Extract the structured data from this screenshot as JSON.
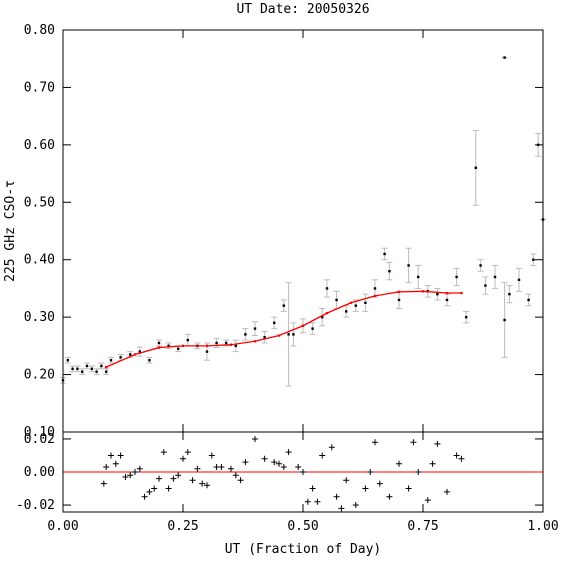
{
  "chart_data": [
    {
      "type": "scatter",
      "title": "UT Date: 20050326",
      "ylabel": "225 GHz CSO-τ",
      "xlim": [
        0,
        1
      ],
      "ylim": [
        0.1,
        0.8
      ],
      "yticks": [
        {
          "value": 0.1,
          "label": "0.10"
        },
        {
          "value": 0.2,
          "label": "0.20"
        },
        {
          "value": 0.3,
          "label": "0.30"
        },
        {
          "value": 0.4,
          "label": "0.40"
        },
        {
          "value": 0.5,
          "label": "0.50"
        },
        {
          "value": 0.6,
          "label": "0.60"
        },
        {
          "value": 0.7,
          "label": "0.70"
        },
        {
          "value": 0.8,
          "label": "0.80"
        }
      ],
      "points": {
        "color": "#000000",
        "error_color": "#bbbbbb",
        "x": [
          0.0,
          0.01,
          0.02,
          0.03,
          0.04,
          0.05,
          0.06,
          0.07,
          0.08,
          0.09,
          0.1,
          0.12,
          0.14,
          0.16,
          0.18,
          0.2,
          0.22,
          0.24,
          0.26,
          0.28,
          0.3,
          0.32,
          0.34,
          0.36,
          0.38,
          0.4,
          0.42,
          0.44,
          0.46,
          0.47,
          0.48,
          0.5,
          0.52,
          0.54,
          0.55,
          0.57,
          0.59,
          0.61,
          0.63,
          0.65,
          0.67,
          0.68,
          0.7,
          0.72,
          0.74,
          0.76,
          0.78,
          0.8,
          0.82,
          0.84,
          0.86,
          0.87,
          0.88,
          0.9,
          0.92,
          0.92,
          0.93,
          0.95,
          0.97,
          0.98,
          0.99,
          1.0
        ],
        "y": [
          0.19,
          0.225,
          0.21,
          0.21,
          0.205,
          0.215,
          0.21,
          0.205,
          0.215,
          0.205,
          0.225,
          0.23,
          0.235,
          0.24,
          0.225,
          0.255,
          0.25,
          0.245,
          0.26,
          0.25,
          0.24,
          0.255,
          0.255,
          0.25,
          0.27,
          0.28,
          0.265,
          0.29,
          0.32,
          0.27,
          0.27,
          0.285,
          0.28,
          0.3,
          0.35,
          0.33,
          0.31,
          0.32,
          0.325,
          0.35,
          0.41,
          0.38,
          0.33,
          0.39,
          0.37,
          0.345,
          0.34,
          0.33,
          0.37,
          0.3,
          0.56,
          0.39,
          0.355,
          0.37,
          0.752,
          0.295,
          0.34,
          0.365,
          0.33,
          0.4,
          0.6,
          0.47
        ],
        "err": [
          0.005,
          0.005,
          0.005,
          0.005,
          0.005,
          0.005,
          0.005,
          0.005,
          0.005,
          0.005,
          0.005,
          0.005,
          0.005,
          0.008,
          0.005,
          0.005,
          0.005,
          0.005,
          0.01,
          0.005,
          0.015,
          0.008,
          0.005,
          0.01,
          0.01,
          0.012,
          0.01,
          0.01,
          0.01,
          0.09,
          0.02,
          0.012,
          0.01,
          0.015,
          0.015,
          0.015,
          0.01,
          0.01,
          0.015,
          0.015,
          0.01,
          0.015,
          0.015,
          0.03,
          0.02,
          0.01,
          0.01,
          0.01,
          0.015,
          0.01,
          0.065,
          0.01,
          0.015,
          0.02,
          0,
          0.065,
          0.015,
          0.02,
          0.01,
          0.01,
          0.02,
          0
        ]
      },
      "fit": {
        "color": "#ff0000",
        "x": [
          0.09,
          0.15,
          0.2,
          0.25,
          0.3,
          0.35,
          0.4,
          0.45,
          0.5,
          0.55,
          0.6,
          0.65,
          0.7,
          0.75,
          0.8,
          0.83
        ],
        "y": [
          0.213,
          0.235,
          0.247,
          0.25,
          0.25,
          0.252,
          0.258,
          0.268,
          0.285,
          0.307,
          0.325,
          0.337,
          0.344,
          0.345,
          0.342,
          0.342
        ]
      }
    },
    {
      "type": "residual",
      "xlabel": "UT (Fraction of Day)",
      "xlim": [
        0,
        1
      ],
      "ylim": [
        -0.0242,
        0.0242
      ],
      "xticks": [
        {
          "value": 0,
          "label": "0.00"
        },
        {
          "value": 0.25,
          "label": "0.25"
        },
        {
          "value": 0.5,
          "label": "0.50"
        },
        {
          "value": 0.75,
          "label": "0.75"
        },
        {
          "value": 1,
          "label": "1.00"
        }
      ],
      "yticks": [
        {
          "value": -0.02,
          "label": "-0.02"
        },
        {
          "value": 0,
          "label": "0.00"
        },
        {
          "value": 0.02,
          "label": "0.02"
        }
      ],
      "zero_line_color": "#ff0000",
      "points": {
        "color": "#000000",
        "x": [
          0.085,
          0.09,
          0.1,
          0.11,
          0.12,
          0.13,
          0.14,
          0.15,
          0.16,
          0.17,
          0.18,
          0.19,
          0.2,
          0.21,
          0.22,
          0.23,
          0.24,
          0.25,
          0.26,
          0.27,
          0.28,
          0.29,
          0.3,
          0.31,
          0.32,
          0.33,
          0.35,
          0.36,
          0.37,
          0.38,
          0.4,
          0.42,
          0.44,
          0.45,
          0.46,
          0.47,
          0.49,
          0.5,
          0.51,
          0.52,
          0.53,
          0.54,
          0.56,
          0.57,
          0.58,
          0.59,
          0.61,
          0.63,
          0.64,
          0.65,
          0.66,
          0.68,
          0.7,
          0.72,
          0.73,
          0.74,
          0.76,
          0.77,
          0.78,
          0.8,
          0.82,
          0.83
        ],
        "y": [
          -0.007,
          0.003,
          0.01,
          0.005,
          0.01,
          -0.003,
          -0.002,
          0.0,
          0.002,
          -0.015,
          -0.012,
          -0.01,
          -0.004,
          0.012,
          -0.01,
          -0.004,
          -0.002,
          0.008,
          0.012,
          -0.005,
          0.002,
          -0.007,
          -0.008,
          0.01,
          0.003,
          0.003,
          0.002,
          -0.002,
          -0.005,
          0.006,
          0.02,
          0.008,
          0.006,
          0.005,
          0.003,
          0.012,
          0.003,
          0.0,
          -0.018,
          -0.01,
          -0.018,
          0.01,
          0.015,
          -0.015,
          -0.022,
          -0.005,
          -0.02,
          -0.01,
          0.0,
          0.018,
          -0.007,
          -0.015,
          0.005,
          -0.01,
          0.018,
          0.0,
          -0.017,
          0.005,
          0.017,
          -0.012,
          0.01,
          0.008
        ]
      }
    }
  ]
}
